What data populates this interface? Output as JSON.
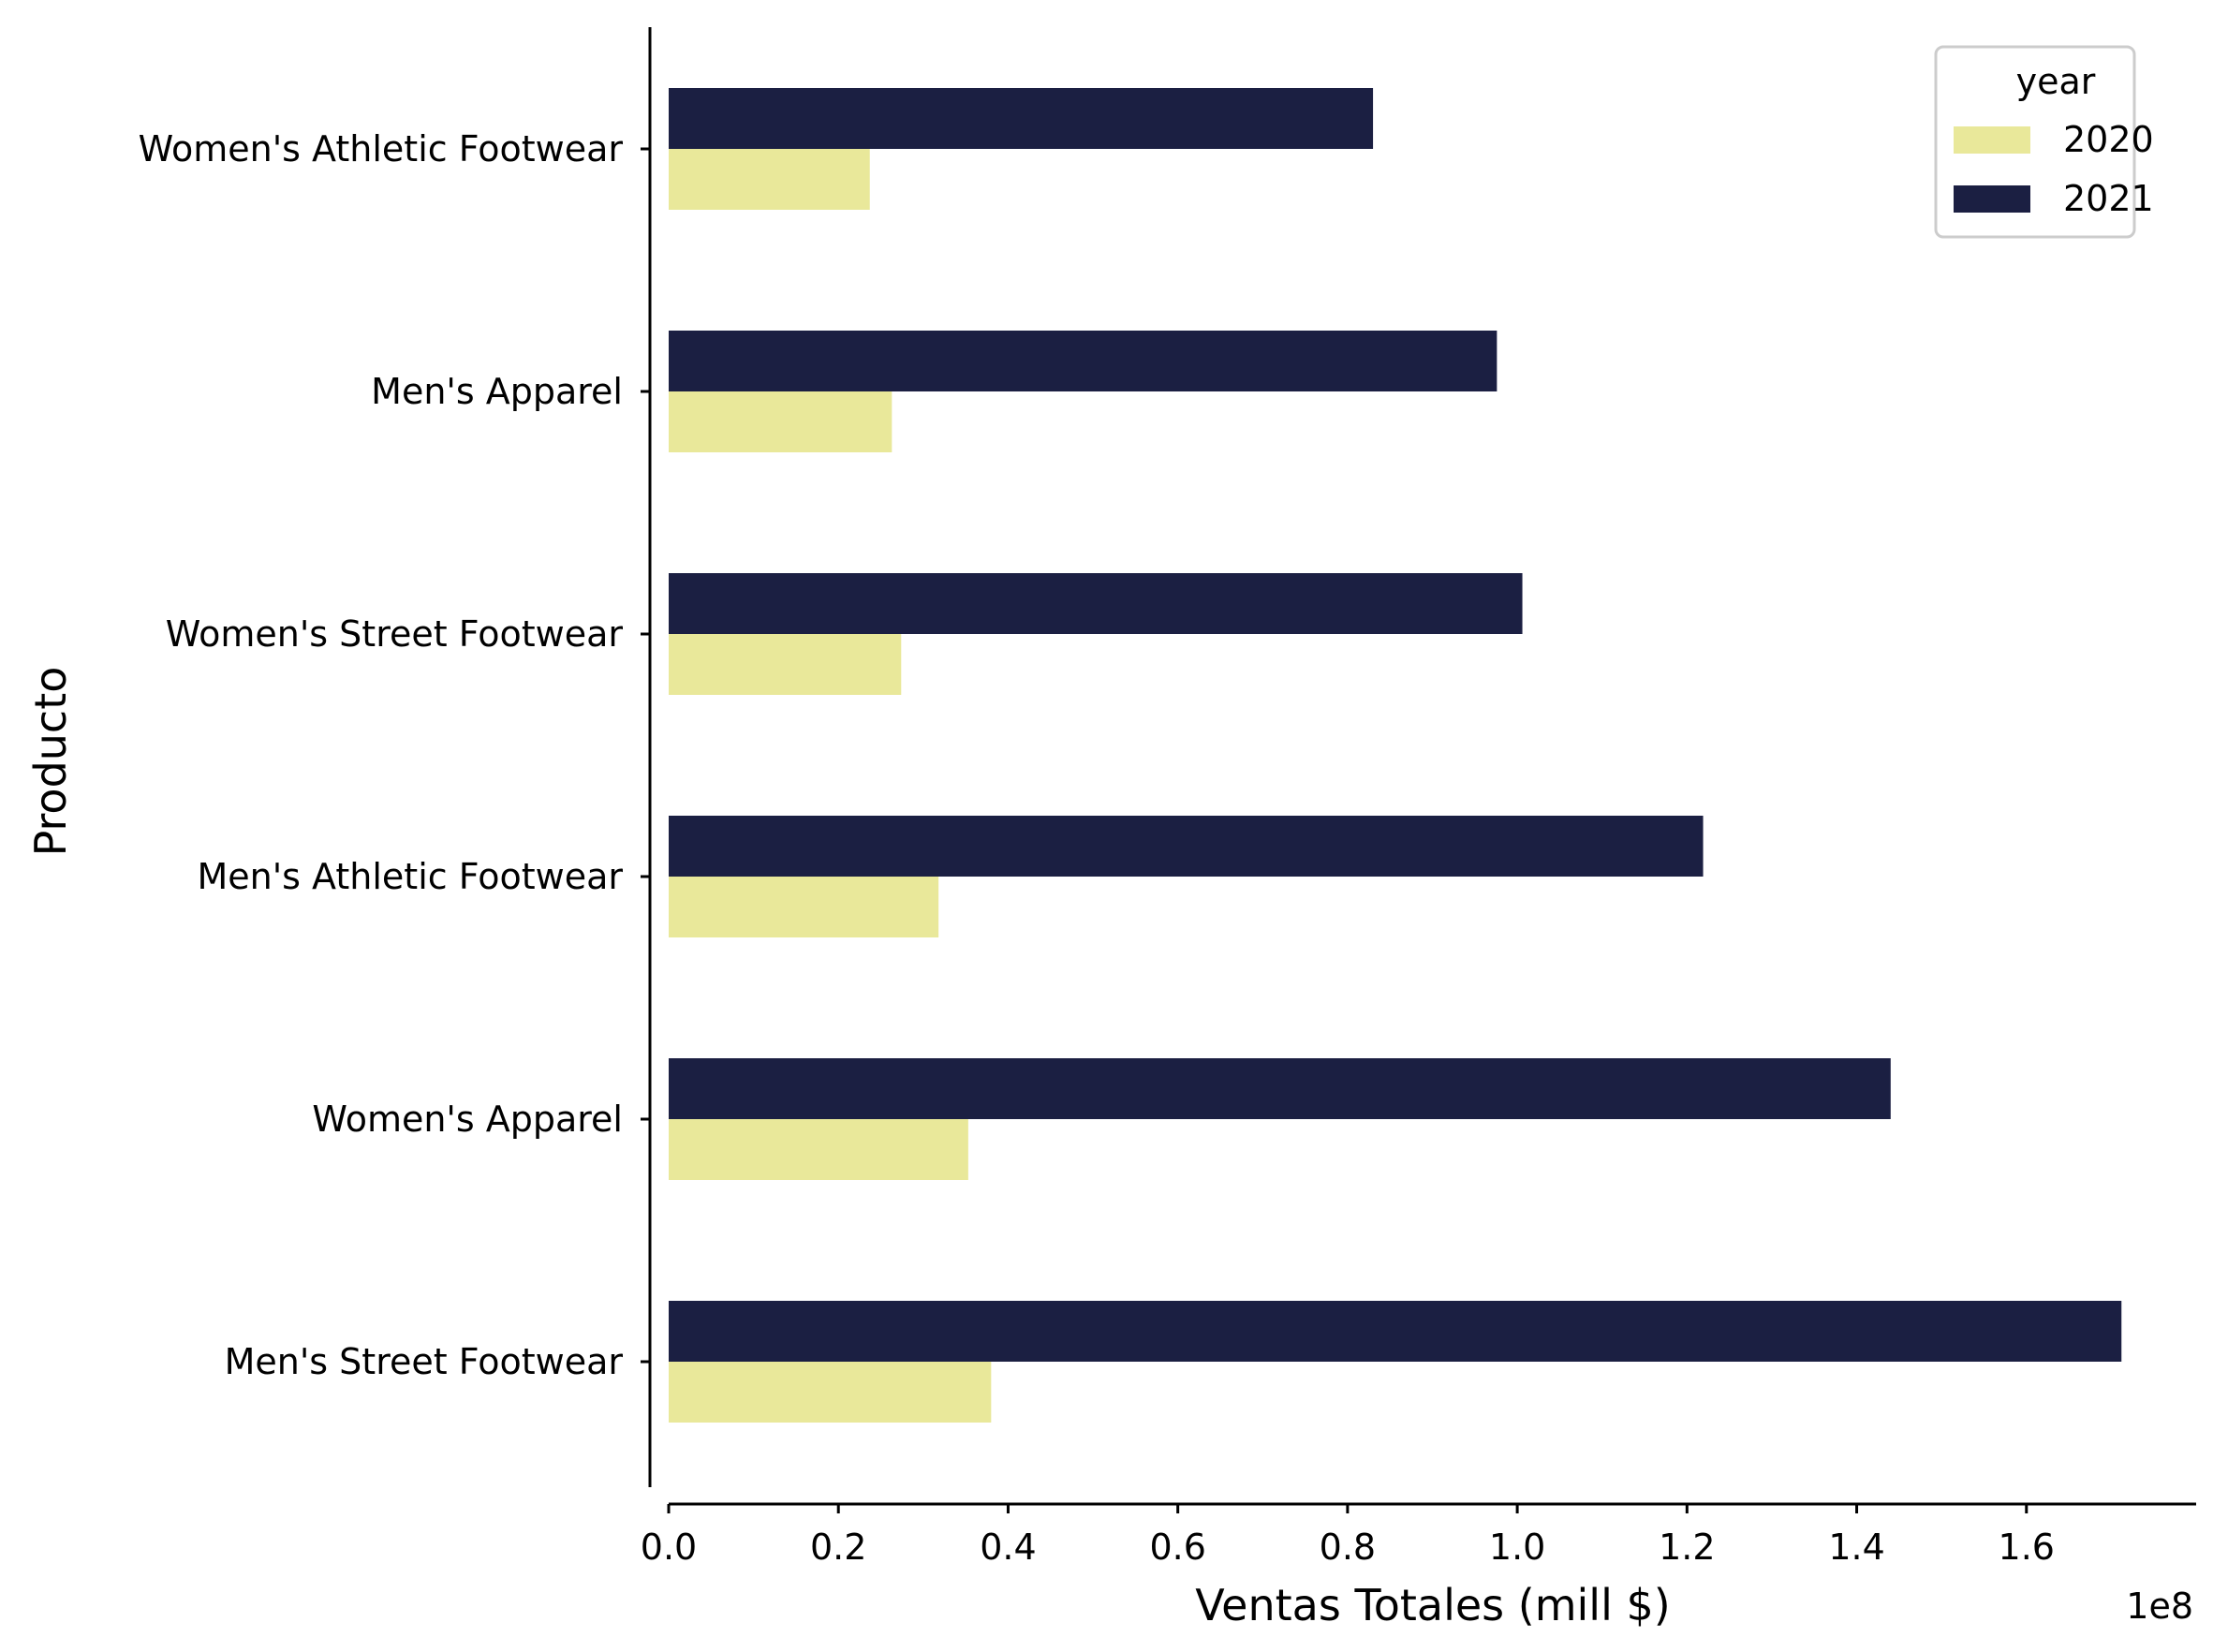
{
  "chart_data": {
    "type": "bar",
    "orientation": "horizontal",
    "categories": [
      "Women's Athletic Footwear",
      "Men's Apparel",
      "Women's Street Footwear",
      "Men's Athletic Footwear",
      "Women's Apparel",
      "Men's Street Footwear"
    ],
    "series": [
      {
        "name": "2020",
        "color": "#e9e89a",
        "values": [
          23700000,
          26300000,
          27400000,
          31800000,
          35300000,
          38000000
        ]
      },
      {
        "name": "2021",
        "color": "#1b1f42",
        "values": [
          83000000,
          97600000,
          100600000,
          121900000,
          144000000,
          171200000
        ]
      }
    ],
    "xlabel": "Ventas Totales (mill $)",
    "ylabel": "Producto",
    "xlim": [
      0,
      180000000
    ],
    "x_ticks": [
      "0.0",
      "0.2",
      "0.4",
      "0.6",
      "0.8",
      "1.0",
      "1.2",
      "1.4",
      "1.6"
    ],
    "x_tick_values": [
      0,
      20000000,
      40000000,
      60000000,
      80000000,
      100000000,
      120000000,
      140000000,
      160000000
    ],
    "x_offset_label": "1e8",
    "legend": {
      "title": "year",
      "position": "top-right"
    },
    "grid": false
  }
}
